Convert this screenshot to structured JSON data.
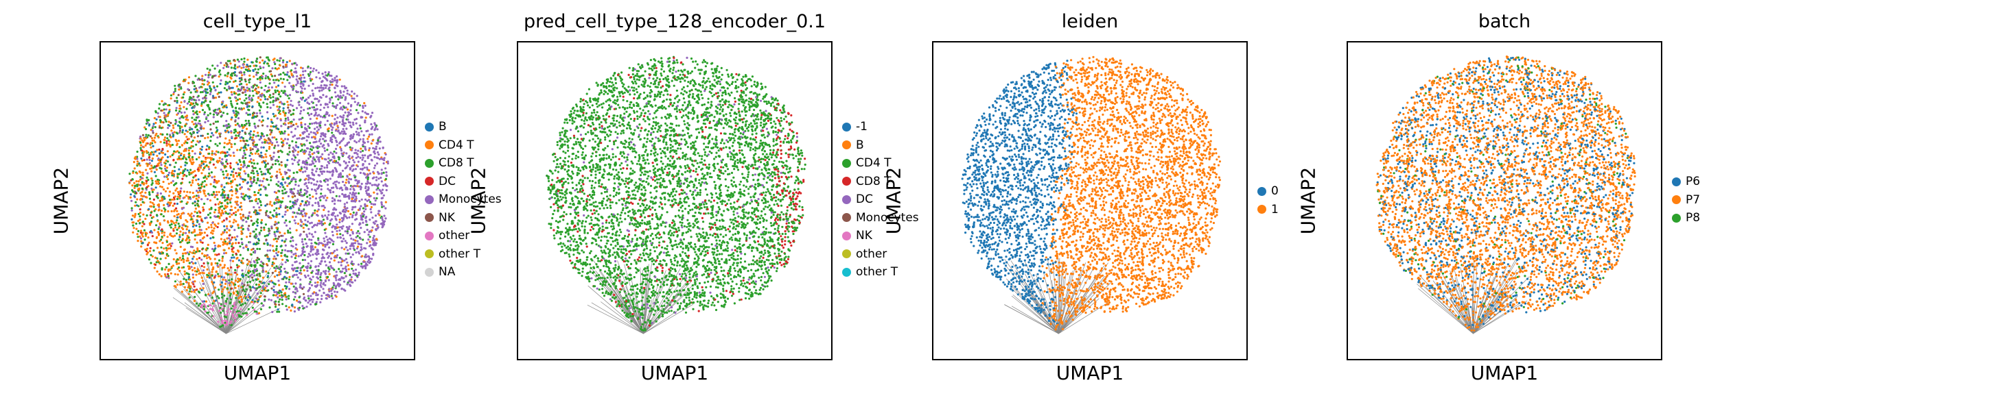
{
  "chart_data": [
    {
      "type": "scatter",
      "title": "cell_type_l1",
      "xlabel": "UMAP1",
      "ylabel": "UMAP2",
      "legend": "right",
      "series": [
        {
          "name": "B",
          "color": "#1f77b4"
        },
        {
          "name": "CD4 T",
          "color": "#ff7f0e"
        },
        {
          "name": "CD8 T",
          "color": "#2ca02c"
        },
        {
          "name": "DC",
          "color": "#d62728"
        },
        {
          "name": "Monocytes",
          "color": "#9467bd"
        },
        {
          "name": "NK",
          "color": "#8c564b"
        },
        {
          "name": "other",
          "color": "#e377c2"
        },
        {
          "name": "other T",
          "color": "#bcbd22"
        },
        {
          "name": "NA",
          "color": "#d3d3d3"
        }
      ]
    },
    {
      "type": "scatter",
      "title": "pred_cell_type_128_encoder_0.1",
      "xlabel": "UMAP1",
      "ylabel": "UMAP2",
      "legend": "right",
      "series": [
        {
          "name": "-1",
          "color": "#1f77b4"
        },
        {
          "name": "B",
          "color": "#ff7f0e"
        },
        {
          "name": "CD4 T",
          "color": "#2ca02c"
        },
        {
          "name": "CD8 T",
          "color": "#d62728"
        },
        {
          "name": "DC",
          "color": "#9467bd"
        },
        {
          "name": "Monocytes",
          "color": "#8c564b"
        },
        {
          "name": "NK",
          "color": "#e377c2"
        },
        {
          "name": "other",
          "color": "#bcbd22"
        },
        {
          "name": "other T",
          "color": "#17becf"
        }
      ]
    },
    {
      "type": "scatter",
      "title": "leiden",
      "xlabel": "UMAP1",
      "ylabel": "UMAP2",
      "legend": "right",
      "series": [
        {
          "name": "0",
          "color": "#1f77b4"
        },
        {
          "name": "1",
          "color": "#ff7f0e"
        }
      ]
    },
    {
      "type": "scatter",
      "title": "batch",
      "xlabel": "UMAP1",
      "ylabel": "UMAP2",
      "legend": "right",
      "series": [
        {
          "name": "P6",
          "color": "#1f77b4"
        },
        {
          "name": "P7",
          "color": "#ff7f0e"
        },
        {
          "name": "P8",
          "color": "#2ca02c"
        }
      ]
    }
  ]
}
